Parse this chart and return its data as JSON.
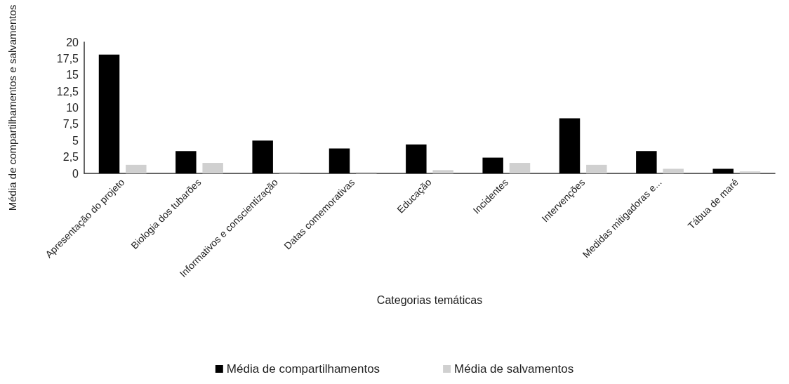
{
  "chart_data": {
    "type": "bar",
    "xlabel": "Categorias temáticas",
    "ylabel": "Média de compartilhamentos e salvamentos",
    "categories": [
      "Apresentação do projeto",
      "Biologia dos tubarões",
      "Informativos e conscientização",
      "Datas comemorativas",
      "Educação",
      "Incidentes",
      "Intervenções",
      "Medidas mitigadoras e...",
      "Tábua de maré"
    ],
    "series": [
      {
        "name": "Média de compartilhamentos",
        "color": "#000000",
        "values": [
          18.1,
          3.4,
          5.0,
          3.8,
          4.4,
          2.4,
          8.4,
          3.4,
          0.7
        ]
      },
      {
        "name": "Média de salvamentos",
        "color": "#d0d0d0",
        "values": [
          1.3,
          1.6,
          0.2,
          0.2,
          0.5,
          1.6,
          1.3,
          0.7,
          0.3
        ]
      }
    ],
    "ylim": [
      0,
      20
    ],
    "yticks": [
      0,
      {
        "value": 2.5,
        "label": "2,5"
      },
      5,
      {
        "value": 7.5,
        "label": "7,5"
      },
      10,
      {
        "value": 12.5,
        "label": "12,5"
      },
      15,
      {
        "value": 17.5,
        "label": "17,5"
      },
      20
    ],
    "grid": false,
    "legend": "bottom"
  }
}
